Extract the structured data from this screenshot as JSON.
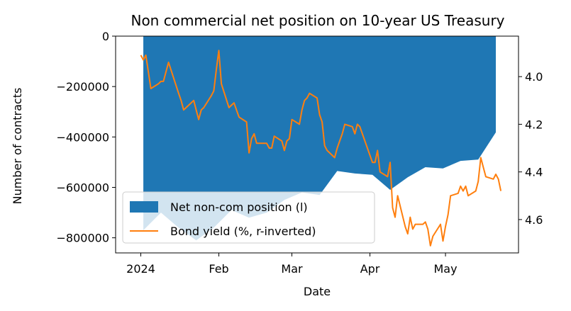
{
  "chart_data": {
    "type": "area",
    "title": "Non commercial net position on 10-year US Treasury",
    "xlabel": "Date",
    "ylabel": "Number of contracts",
    "x_ticks": [
      "2024",
      "Feb",
      "Mar",
      "Apr",
      "May"
    ],
    "x_tick_dates": [
      "2024-01-01",
      "2024-02-01",
      "2024-03-01",
      "2024-04-01",
      "2024-05-01"
    ],
    "xlim": [
      "2023-12-22",
      "2024-05-30"
    ],
    "y_left": {
      "lim": [
        -860000,
        0
      ],
      "ticks": [
        0,
        -200000,
        -400000,
        -600000,
        -800000
      ],
      "tick_labels": [
        "0",
        "−200000",
        "−400000",
        "−600000",
        "−800000"
      ]
    },
    "y_right": {
      "lim": [
        3.83,
        4.74
      ],
      "inverted": true,
      "ticks": [
        4.0,
        4.2,
        4.4,
        4.6
      ],
      "tick_labels": [
        "4.0",
        "4.2",
        "4.4",
        "4.6"
      ]
    },
    "legend_position": "lower-left",
    "colors": {
      "area": "#1f77b4",
      "line": "#ff7f0e"
    },
    "series": [
      {
        "name": "Net non-com position (l)",
        "axis": "left",
        "kind": "area",
        "x": [
          "2024-01-02",
          "2024-01-09",
          "2024-01-16",
          "2024-01-23",
          "2024-01-30",
          "2024-02-06",
          "2024-02-13",
          "2024-02-20",
          "2024-02-27",
          "2024-03-05",
          "2024-03-12",
          "2024-03-19",
          "2024-03-26",
          "2024-04-02",
          "2024-04-09",
          "2024-04-16",
          "2024-04-23",
          "2024-04-30",
          "2024-05-07",
          "2024-05-14",
          "2024-05-21"
        ],
        "values": [
          -770000,
          -700000,
          -760000,
          -810000,
          -760000,
          -690000,
          -720000,
          -700000,
          -650000,
          -620000,
          -630000,
          -535000,
          -545000,
          -550000,
          -610000,
          -560000,
          -520000,
          -525000,
          -495000,
          -490000,
          -382000
        ]
      },
      {
        "name": "Bond yield (%, r-inverted)",
        "axis": "right",
        "kind": "line",
        "x": [
          "2024-01-01",
          "2024-01-02",
          "2024-01-03",
          "2024-01-05",
          "2024-01-08",
          "2024-01-09",
          "2024-01-10",
          "2024-01-11",
          "2024-01-12",
          "2024-01-16",
          "2024-01-17",
          "2024-01-18",
          "2024-01-19",
          "2024-01-22",
          "2024-01-23",
          "2024-01-24",
          "2024-01-25",
          "2024-01-26",
          "2024-01-29",
          "2024-01-30",
          "2024-01-31",
          "2024-02-01",
          "2024-02-02",
          "2024-02-05",
          "2024-02-06",
          "2024-02-07",
          "2024-02-08",
          "2024-02-09",
          "2024-02-12",
          "2024-02-13",
          "2024-02-14",
          "2024-02-15",
          "2024-02-16",
          "2024-02-20",
          "2024-02-21",
          "2024-02-22",
          "2024-02-23",
          "2024-02-26",
          "2024-02-27",
          "2024-02-28",
          "2024-02-29",
          "2024-03-01",
          "2024-03-04",
          "2024-03-05",
          "2024-03-06",
          "2024-03-07",
          "2024-03-08",
          "2024-03-11",
          "2024-03-12",
          "2024-03-13",
          "2024-03-14",
          "2024-03-15",
          "2024-03-18",
          "2024-03-19",
          "2024-03-20",
          "2024-03-21",
          "2024-03-22",
          "2024-03-25",
          "2024-03-26",
          "2024-03-27",
          "2024-03-28",
          "2024-04-01",
          "2024-04-02",
          "2024-04-03",
          "2024-04-04",
          "2024-04-05",
          "2024-04-08",
          "2024-04-09",
          "2024-04-10",
          "2024-04-11",
          "2024-04-12",
          "2024-04-15",
          "2024-04-16",
          "2024-04-17",
          "2024-04-18",
          "2024-04-19",
          "2024-04-22",
          "2024-04-23",
          "2024-04-24",
          "2024-04-25",
          "2024-04-26",
          "2024-04-29",
          "2024-04-30",
          "2024-05-01",
          "2024-05-02",
          "2024-05-03",
          "2024-05-06",
          "2024-05-07",
          "2024-05-08",
          "2024-05-09",
          "2024-05-10",
          "2024-05-13",
          "2024-05-14",
          "2024-05-15",
          "2024-05-16",
          "2024-05-17",
          "2024-05-20",
          "2024-05-21",
          "2024-05-22",
          "2024-05-23"
        ],
        "values": [
          3.91,
          3.93,
          3.91,
          4.05,
          4.03,
          4.02,
          4.02,
          3.98,
          3.94,
          4.07,
          4.1,
          4.14,
          4.13,
          4.1,
          4.14,
          4.18,
          4.14,
          4.13,
          4.08,
          4.06,
          3.97,
          3.89,
          4.03,
          4.13,
          4.12,
          4.11,
          4.14,
          4.17,
          4.19,
          4.32,
          4.26,
          4.24,
          4.28,
          4.28,
          4.3,
          4.3,
          4.25,
          4.27,
          4.31,
          4.27,
          4.26,
          4.18,
          4.2,
          4.14,
          4.1,
          4.09,
          4.07,
          4.09,
          4.16,
          4.19,
          4.29,
          4.31,
          4.34,
          4.3,
          4.27,
          4.24,
          4.2,
          4.21,
          4.24,
          4.2,
          4.21,
          4.33,
          4.36,
          4.36,
          4.31,
          4.4,
          4.42,
          4.36,
          4.55,
          4.59,
          4.5,
          4.63,
          4.66,
          4.59,
          4.64,
          4.62,
          4.62,
          4.61,
          4.64,
          4.71,
          4.67,
          4.62,
          4.69,
          4.63,
          4.58,
          4.5,
          4.49,
          4.46,
          4.48,
          4.46,
          4.5,
          4.48,
          4.44,
          4.34,
          4.38,
          4.42,
          4.43,
          4.41,
          4.43,
          4.48
        ]
      }
    ]
  }
}
